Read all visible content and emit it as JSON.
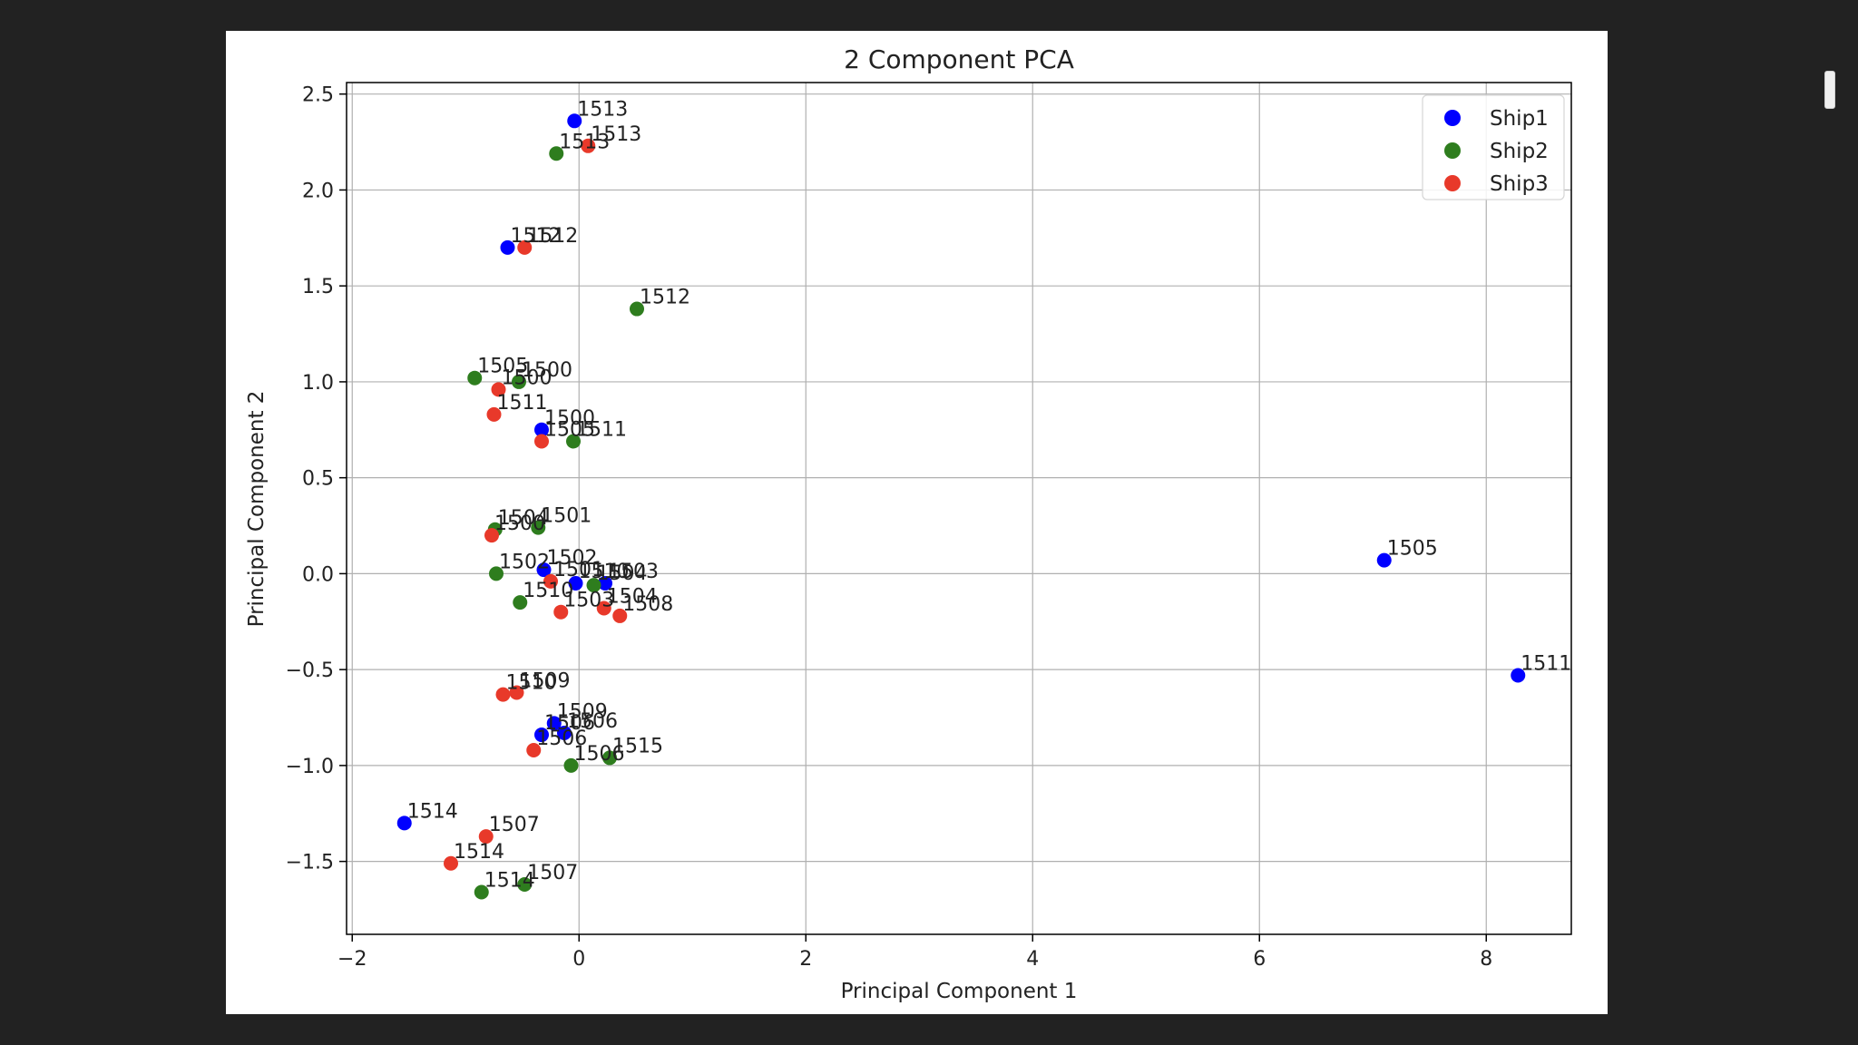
{
  "chart_data": {
    "type": "scatter",
    "title": "2 Component PCA",
    "xlabel": "Principal Component 1",
    "ylabel": "Principal Component 2",
    "xlim": [
      -2.05,
      8.75
    ],
    "ylim": [
      -1.88,
      2.56
    ],
    "xticks": [
      -2,
      0,
      2,
      4,
      6,
      8
    ],
    "xtick_labels": [
      "−2",
      "0",
      "2",
      "4",
      "6",
      "8"
    ],
    "yticks": [
      -1.5,
      -1.0,
      -0.5,
      0.0,
      0.5,
      1.0,
      1.5,
      2.0,
      2.5
    ],
    "ytick_labels": [
      "−1.5",
      "−1.0",
      "−0.5",
      "0.0",
      "0.5",
      "1.0",
      "1.5",
      "2.0",
      "2.5"
    ],
    "grid": true,
    "legend_position": "top-right",
    "series": [
      {
        "name": "Ship1",
        "color": "#0000ff",
        "points": [
          {
            "x": -0.04,
            "y": 2.36,
            "label": "1513"
          },
          {
            "x": -0.63,
            "y": 1.7,
            "label": "1512"
          },
          {
            "x": -0.33,
            "y": 0.75,
            "label": "1500"
          },
          {
            "x": 7.1,
            "y": 0.07,
            "label": "1505"
          },
          {
            "x": 8.28,
            "y": -0.53,
            "label": "1511"
          },
          {
            "x": -0.31,
            "y": 0.02,
            "label": "1502"
          },
          {
            "x": -0.03,
            "y": -0.05,
            "label": "1510"
          },
          {
            "x": 0.23,
            "y": -0.05,
            "label": "1503"
          },
          {
            "x": -0.22,
            "y": -0.78,
            "label": "1509"
          },
          {
            "x": -0.13,
            "y": -0.83,
            "label": "1506"
          },
          {
            "x": -0.33,
            "y": -0.84,
            "label": "1506"
          },
          {
            "x": -1.54,
            "y": -1.3,
            "label": "1514"
          }
        ]
      },
      {
        "name": "Ship2",
        "color": "#2e7d1e",
        "points": [
          {
            "x": -0.2,
            "y": 2.19,
            "label": "1513"
          },
          {
            "x": 0.51,
            "y": 1.38,
            "label": "1512"
          },
          {
            "x": -0.92,
            "y": 1.02,
            "label": "1505"
          },
          {
            "x": -0.53,
            "y": 1.0,
            "label": "1500"
          },
          {
            "x": -0.05,
            "y": 0.69,
            "label": "1511"
          },
          {
            "x": -0.74,
            "y": 0.23,
            "label": "1504"
          },
          {
            "x": -0.36,
            "y": 0.24,
            "label": "1501"
          },
          {
            "x": -0.73,
            "y": 0.0,
            "label": "1502"
          },
          {
            "x": 0.13,
            "y": -0.06,
            "label": "1504"
          },
          {
            "x": -0.52,
            "y": -0.15,
            "label": "1510"
          },
          {
            "x": 0.27,
            "y": -0.96,
            "label": "1515"
          },
          {
            "x": -0.07,
            "y": -1.0,
            "label": "1506"
          },
          {
            "x": -0.48,
            "y": -1.62,
            "label": "1507"
          },
          {
            "x": -0.86,
            "y": -1.66,
            "label": "1514"
          }
        ]
      },
      {
        "name": "Ship3",
        "color": "#e8392a",
        "points": [
          {
            "x": 0.08,
            "y": 2.23,
            "label": "1513"
          },
          {
            "x": -0.48,
            "y": 1.7,
            "label": "1512"
          },
          {
            "x": -0.71,
            "y": 0.96,
            "label": "1500"
          },
          {
            "x": -0.75,
            "y": 0.83,
            "label": "1511"
          },
          {
            "x": -0.33,
            "y": 0.69,
            "label": "1505"
          },
          {
            "x": -0.77,
            "y": 0.2,
            "label": "1500"
          },
          {
            "x": -0.25,
            "y": -0.04,
            "label": "1501"
          },
          {
            "x": -0.16,
            "y": -0.2,
            "label": "1503"
          },
          {
            "x": 0.22,
            "y": -0.18,
            "label": "1504"
          },
          {
            "x": 0.36,
            "y": -0.22,
            "label": "1508"
          },
          {
            "x": -0.67,
            "y": -0.63,
            "label": "1510"
          },
          {
            "x": -0.55,
            "y": -0.62,
            "label": "1509"
          },
          {
            "x": -0.4,
            "y": -0.92,
            "label": "1506"
          },
          {
            "x": -0.82,
            "y": -1.37,
            "label": "1507"
          },
          {
            "x": -1.13,
            "y": -1.51,
            "label": "1514"
          }
        ]
      }
    ]
  }
}
